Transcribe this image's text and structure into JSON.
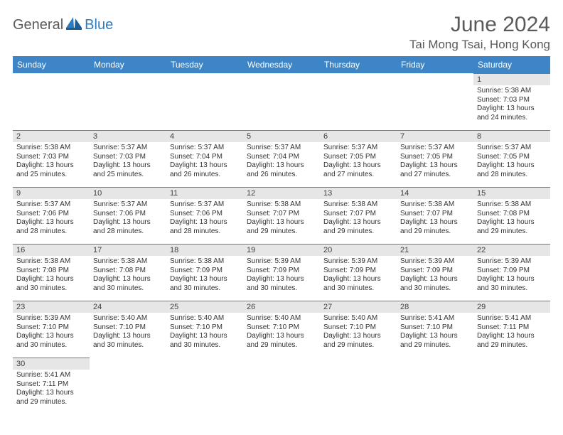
{
  "brand": {
    "general": "General",
    "blue": "Blue"
  },
  "title": "June 2024",
  "location": "Tai Mong Tsai, Hong Kong",
  "colors": {
    "header_bg": "#3d85c6",
    "header_text": "#ffffff",
    "daynum_bg": "#e6e6e6",
    "daynum_border": "#3d85c6",
    "text_body": "#333333",
    "title_color": "#5a5a5a",
    "logo_blue": "#2f7bbf"
  },
  "weekdays": [
    "Sunday",
    "Monday",
    "Tuesday",
    "Wednesday",
    "Thursday",
    "Friday",
    "Saturday"
  ],
  "weeks": [
    [
      null,
      null,
      null,
      null,
      null,
      null,
      {
        "n": "1",
        "sr": "Sunrise: 5:38 AM",
        "ss": "Sunset: 7:03 PM",
        "dl": "Daylight: 13 hours and 24 minutes."
      }
    ],
    [
      {
        "n": "2",
        "sr": "Sunrise: 5:38 AM",
        "ss": "Sunset: 7:03 PM",
        "dl": "Daylight: 13 hours and 25 minutes."
      },
      {
        "n": "3",
        "sr": "Sunrise: 5:37 AM",
        "ss": "Sunset: 7:03 PM",
        "dl": "Daylight: 13 hours and 25 minutes."
      },
      {
        "n": "4",
        "sr": "Sunrise: 5:37 AM",
        "ss": "Sunset: 7:04 PM",
        "dl": "Daylight: 13 hours and 26 minutes."
      },
      {
        "n": "5",
        "sr": "Sunrise: 5:37 AM",
        "ss": "Sunset: 7:04 PM",
        "dl": "Daylight: 13 hours and 26 minutes."
      },
      {
        "n": "6",
        "sr": "Sunrise: 5:37 AM",
        "ss": "Sunset: 7:05 PM",
        "dl": "Daylight: 13 hours and 27 minutes."
      },
      {
        "n": "7",
        "sr": "Sunrise: 5:37 AM",
        "ss": "Sunset: 7:05 PM",
        "dl": "Daylight: 13 hours and 27 minutes."
      },
      {
        "n": "8",
        "sr": "Sunrise: 5:37 AM",
        "ss": "Sunset: 7:05 PM",
        "dl": "Daylight: 13 hours and 28 minutes."
      }
    ],
    [
      {
        "n": "9",
        "sr": "Sunrise: 5:37 AM",
        "ss": "Sunset: 7:06 PM",
        "dl": "Daylight: 13 hours and 28 minutes."
      },
      {
        "n": "10",
        "sr": "Sunrise: 5:37 AM",
        "ss": "Sunset: 7:06 PM",
        "dl": "Daylight: 13 hours and 28 minutes."
      },
      {
        "n": "11",
        "sr": "Sunrise: 5:37 AM",
        "ss": "Sunset: 7:06 PM",
        "dl": "Daylight: 13 hours and 28 minutes."
      },
      {
        "n": "12",
        "sr": "Sunrise: 5:38 AM",
        "ss": "Sunset: 7:07 PM",
        "dl": "Daylight: 13 hours and 29 minutes."
      },
      {
        "n": "13",
        "sr": "Sunrise: 5:38 AM",
        "ss": "Sunset: 7:07 PM",
        "dl": "Daylight: 13 hours and 29 minutes."
      },
      {
        "n": "14",
        "sr": "Sunrise: 5:38 AM",
        "ss": "Sunset: 7:07 PM",
        "dl": "Daylight: 13 hours and 29 minutes."
      },
      {
        "n": "15",
        "sr": "Sunrise: 5:38 AM",
        "ss": "Sunset: 7:08 PM",
        "dl": "Daylight: 13 hours and 29 minutes."
      }
    ],
    [
      {
        "n": "16",
        "sr": "Sunrise: 5:38 AM",
        "ss": "Sunset: 7:08 PM",
        "dl": "Daylight: 13 hours and 30 minutes."
      },
      {
        "n": "17",
        "sr": "Sunrise: 5:38 AM",
        "ss": "Sunset: 7:08 PM",
        "dl": "Daylight: 13 hours and 30 minutes."
      },
      {
        "n": "18",
        "sr": "Sunrise: 5:38 AM",
        "ss": "Sunset: 7:09 PM",
        "dl": "Daylight: 13 hours and 30 minutes."
      },
      {
        "n": "19",
        "sr": "Sunrise: 5:39 AM",
        "ss": "Sunset: 7:09 PM",
        "dl": "Daylight: 13 hours and 30 minutes."
      },
      {
        "n": "20",
        "sr": "Sunrise: 5:39 AM",
        "ss": "Sunset: 7:09 PM",
        "dl": "Daylight: 13 hours and 30 minutes."
      },
      {
        "n": "21",
        "sr": "Sunrise: 5:39 AM",
        "ss": "Sunset: 7:09 PM",
        "dl": "Daylight: 13 hours and 30 minutes."
      },
      {
        "n": "22",
        "sr": "Sunrise: 5:39 AM",
        "ss": "Sunset: 7:09 PM",
        "dl": "Daylight: 13 hours and 30 minutes."
      }
    ],
    [
      {
        "n": "23",
        "sr": "Sunrise: 5:39 AM",
        "ss": "Sunset: 7:10 PM",
        "dl": "Daylight: 13 hours and 30 minutes."
      },
      {
        "n": "24",
        "sr": "Sunrise: 5:40 AM",
        "ss": "Sunset: 7:10 PM",
        "dl": "Daylight: 13 hours and 30 minutes."
      },
      {
        "n": "25",
        "sr": "Sunrise: 5:40 AM",
        "ss": "Sunset: 7:10 PM",
        "dl": "Daylight: 13 hours and 30 minutes."
      },
      {
        "n": "26",
        "sr": "Sunrise: 5:40 AM",
        "ss": "Sunset: 7:10 PM",
        "dl": "Daylight: 13 hours and 29 minutes."
      },
      {
        "n": "27",
        "sr": "Sunrise: 5:40 AM",
        "ss": "Sunset: 7:10 PM",
        "dl": "Daylight: 13 hours and 29 minutes."
      },
      {
        "n": "28",
        "sr": "Sunrise: 5:41 AM",
        "ss": "Sunset: 7:10 PM",
        "dl": "Daylight: 13 hours and 29 minutes."
      },
      {
        "n": "29",
        "sr": "Sunrise: 5:41 AM",
        "ss": "Sunset: 7:11 PM",
        "dl": "Daylight: 13 hours and 29 minutes."
      }
    ],
    [
      {
        "n": "30",
        "sr": "Sunrise: 5:41 AM",
        "ss": "Sunset: 7:11 PM",
        "dl": "Daylight: 13 hours and 29 minutes."
      },
      null,
      null,
      null,
      null,
      null,
      null
    ]
  ]
}
